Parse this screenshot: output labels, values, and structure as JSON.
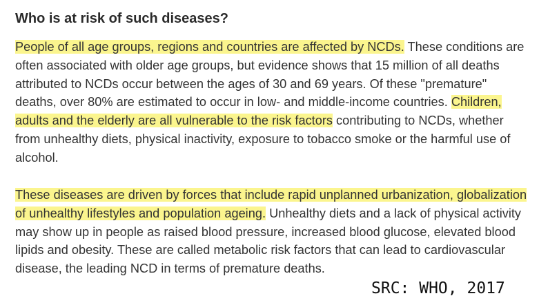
{
  "section": {
    "heading": "Who is at risk of such diseases?"
  },
  "paragraphs": [
    {
      "highlight_1": "People of all age groups, regions and countries are affected by NCDs.",
      "text_1": " These conditions are often associated with older age groups, but evidence shows that 15 million of all deaths attributed to NCDs occur between the ages of 30 and 69 years. Of these \"premature\" deaths, over 80% are estimated to occur in low- and middle-income countries. ",
      "highlight_2": "Children, adults and the elderly are all vulnerable to the risk factors",
      "text_2": " contributing to NCDs, whether from unhealthy diets, physical inactivity, exposure to tobacco smoke or the harmful use of alcohol."
    },
    {
      "highlight_1": "These diseases are driven by forces that include rapid unplanned urbanization, globalization of unhealthy lifestyles and population ageing.",
      "text_1": " Unhealthy diets and a lack of physical activity may show up in people as raised blood pressure, increased blood glucose, elevated blood lipids and obesity. These are called metabolic risk factors that can lead to cardiovascular disease, the leading NCD in terms of premature deaths."
    }
  ],
  "source_label": "SRC: WHO, 2017",
  "colors": {
    "highlight": "#fbf58e",
    "text": "#333333",
    "heading": "#2a2a2a"
  }
}
